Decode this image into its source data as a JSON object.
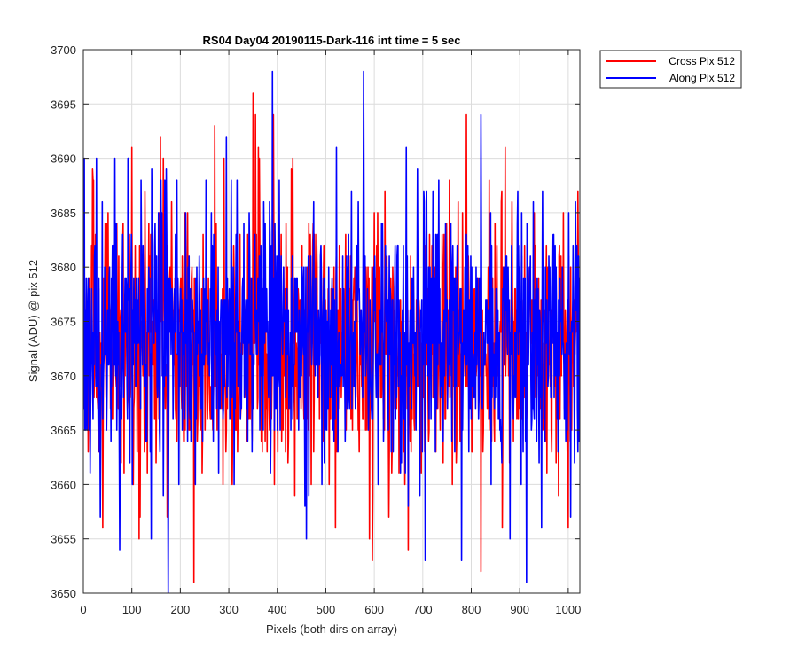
{
  "chart_data": {
    "type": "line",
    "title": "RS04 Day04 20190115-Dark-116 int time = 5 sec",
    "xlabel": "Pixels (both dirs on array)",
    "ylabel": "Signal (ADU) @ pix 512",
    "xlim": [
      0,
      1024
    ],
    "ylim": [
      3650,
      3700
    ],
    "xticks": [
      0,
      100,
      200,
      300,
      400,
      500,
      600,
      700,
      800,
      900,
      1000
    ],
    "yticks": [
      3650,
      3655,
      3660,
      3665,
      3670,
      3675,
      3680,
      3685,
      3690,
      3695,
      3700
    ],
    "grid": true,
    "legend_position": "outside-top-right",
    "series": [
      {
        "name": "Cross Pix 512",
        "color": "#ff0000",
        "mean": 3673,
        "sigma": 6,
        "range": [
          3651,
          3696
        ],
        "noise": "random",
        "highlights": [
          {
            "x": 20,
            "y": 3688
          },
          {
            "x": 40,
            "y": 3656
          },
          {
            "x": 100,
            "y": 3691
          },
          {
            "x": 115,
            "y": 3655
          },
          {
            "x": 165,
            "y": 3690
          },
          {
            "x": 228,
            "y": 3651
          },
          {
            "x": 290,
            "y": 3690
          },
          {
            "x": 350,
            "y": 3696
          },
          {
            "x": 355,
            "y": 3694
          },
          {
            "x": 392,
            "y": 3694
          },
          {
            "x": 520,
            "y": 3656
          },
          {
            "x": 590,
            "y": 3655
          },
          {
            "x": 790,
            "y": 3694
          },
          {
            "x": 820,
            "y": 3652
          },
          {
            "x": 870,
            "y": 3691
          },
          {
            "x": 1000,
            "y": 3656
          }
        ]
      },
      {
        "name": "Along Pix 512",
        "color": "#0000ff",
        "mean": 3674,
        "sigma": 6,
        "range": [
          3650,
          3698
        ],
        "noise": "random",
        "highlights": [
          {
            "x": 2,
            "y": 3690
          },
          {
            "x": 75,
            "y": 3654
          },
          {
            "x": 140,
            "y": 3655
          },
          {
            "x": 175,
            "y": 3650
          },
          {
            "x": 295,
            "y": 3692
          },
          {
            "x": 390,
            "y": 3698
          },
          {
            "x": 460,
            "y": 3655
          },
          {
            "x": 578,
            "y": 3698
          },
          {
            "x": 705,
            "y": 3653
          },
          {
            "x": 780,
            "y": 3653
          },
          {
            "x": 820,
            "y": 3694
          },
          {
            "x": 880,
            "y": 3655
          },
          {
            "x": 1018,
            "y": 3682
          }
        ]
      }
    ]
  }
}
